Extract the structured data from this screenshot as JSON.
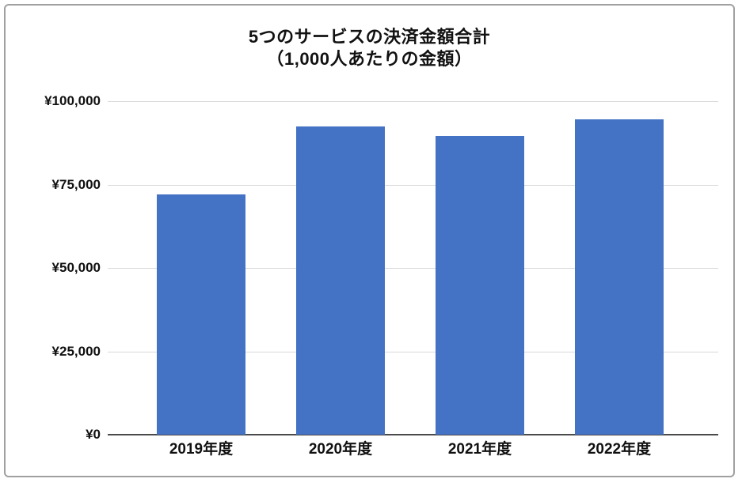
{
  "chart_data": {
    "type": "bar",
    "title_line1": "5つのサービスの決済金額合計",
    "title_line2": "（1,000人あたりの金額）",
    "categories": [
      "2019年度",
      "2020年度",
      "2021年度",
      "2022年度"
    ],
    "values": [
      72000,
      92500,
      89500,
      94500
    ],
    "xlabel": "",
    "ylabel": "",
    "ylim": [
      0,
      100000
    ],
    "yticks": [
      0,
      25000,
      50000,
      75000,
      100000
    ],
    "ytick_labels": [
      "¥0",
      "¥25,000",
      "¥50,000",
      "¥75,000",
      "¥100,000"
    ],
    "grid": true,
    "legend_position": "none",
    "bar_color": "#4472C4",
    "gridline_color": "#d9d9d9",
    "axis_line_color": "#4a4a4a",
    "text_color": "#111111",
    "frame_border_color": "#a0a0a0",
    "background_color": "#ffffff"
  }
}
